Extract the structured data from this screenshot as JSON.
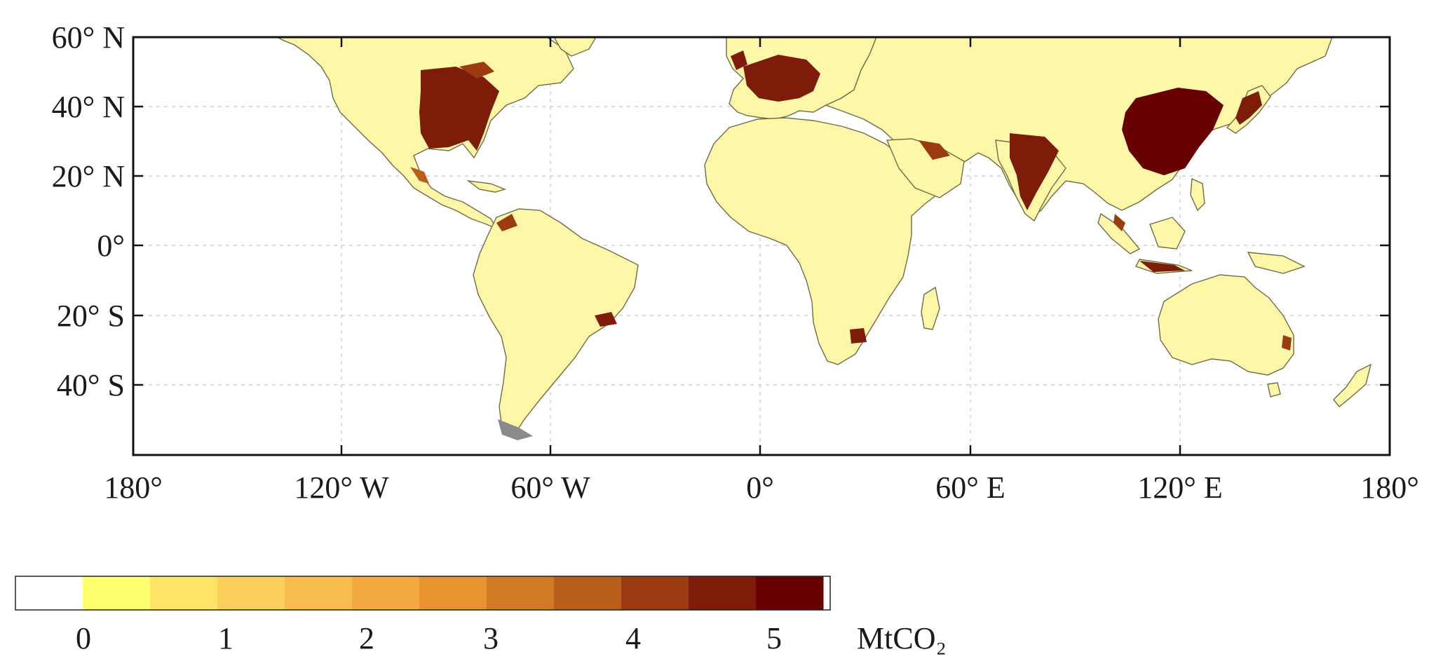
{
  "map": {
    "lat_ticks": [
      {
        "value": 60,
        "label": "60° N"
      },
      {
        "value": 40,
        "label": "40° N"
      },
      {
        "value": 20,
        "label": "20° N"
      },
      {
        "value": 0,
        "label": "0°"
      },
      {
        "value": -20,
        "label": "20° S"
      },
      {
        "value": -40,
        "label": "40° S"
      }
    ],
    "lon_ticks": [
      {
        "value": -180,
        "label": "180°"
      },
      {
        "value": -120,
        "label": "120° W"
      },
      {
        "value": -60,
        "label": "60° W"
      },
      {
        "value": 0,
        "label": "0°"
      },
      {
        "value": 60,
        "label": "60° E"
      },
      {
        "value": 120,
        "label": "120° E"
      },
      {
        "value": 180,
        "label": "180°"
      }
    ],
    "lon_range": [
      -180,
      180
    ],
    "lat_range": [
      -60,
      60
    ],
    "grid": true,
    "colors": {
      "land_base": "#fff7a8",
      "land_outline": "#6d6d4a",
      "ocean": "#ffffff",
      "antarctic_ice": "#8a8a8a"
    }
  },
  "colorbar": {
    "unit": "MtCO₂",
    "tick_labels": [
      "0",
      "1",
      "2",
      "3",
      "4",
      "5"
    ],
    "colors": [
      "#ffffff",
      "#ffff70",
      "#fde466",
      "#fbd05a",
      "#f8bd4c",
      "#f4aa3e",
      "#e79430",
      "#d07a24",
      "#b85f1c",
      "#9b3b11",
      "#7d1c08",
      "#680000"
    ]
  }
}
